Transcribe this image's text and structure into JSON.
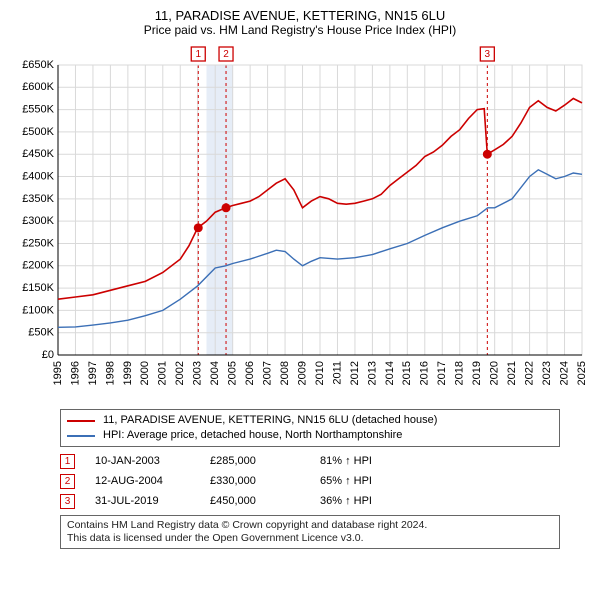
{
  "title": "11, PARADISE AVENUE, KETTERING, NN15 6LU",
  "subtitle": "Price paid vs. HM Land Registry's House Price Index (HPI)",
  "chart": {
    "type": "line",
    "x_years": [
      1995,
      1996,
      1997,
      1998,
      1999,
      2000,
      2001,
      2002,
      2003,
      2004,
      2005,
      2006,
      2007,
      2008,
      2009,
      2010,
      2011,
      2012,
      2013,
      2014,
      2015,
      2016,
      2017,
      2018,
      2019,
      2020,
      2021,
      2022,
      2023,
      2024,
      2025
    ],
    "ylim": [
      0,
      650000
    ],
    "ytick_step": 50000,
    "ytick_labels": [
      "£0",
      "£50K",
      "£100K",
      "£150K",
      "£200K",
      "£250K",
      "£300K",
      "£350K",
      "£400K",
      "£450K",
      "£500K",
      "£550K",
      "£600K",
      "£650K"
    ],
    "grid_color": "#d9d9d9",
    "background_color": "#ffffff",
    "axis_color": "#000000",
    "subject_color": "#cc0000",
    "hpi_color": "#3b6fb6",
    "marker_color": "#cc0000",
    "badge_border": "#cc0000",
    "highlight_band_fill": "#e6edf7",
    "highlight_band_years": [
      2003.5,
      2005.0
    ],
    "subject_series": [
      [
        1995.0,
        125000
      ],
      [
        1996.0,
        130000
      ],
      [
        1997.0,
        135000
      ],
      [
        1998.0,
        145000
      ],
      [
        1999.0,
        155000
      ],
      [
        2000.0,
        165000
      ],
      [
        2001.0,
        185000
      ],
      [
        2002.0,
        215000
      ],
      [
        2002.5,
        245000
      ],
      [
        2003.0,
        285000
      ],
      [
        2003.5,
        300000
      ],
      [
        2004.0,
        320000
      ],
      [
        2004.6,
        330000
      ],
      [
        2005.0,
        335000
      ],
      [
        2005.5,
        340000
      ],
      [
        2006.0,
        345000
      ],
      [
        2006.5,
        355000
      ],
      [
        2007.0,
        370000
      ],
      [
        2007.5,
        385000
      ],
      [
        2008.0,
        395000
      ],
      [
        2008.5,
        370000
      ],
      [
        2009.0,
        330000
      ],
      [
        2009.5,
        345000
      ],
      [
        2010.0,
        355000
      ],
      [
        2010.5,
        350000
      ],
      [
        2011.0,
        340000
      ],
      [
        2011.5,
        338000
      ],
      [
        2012.0,
        340000
      ],
      [
        2012.5,
        345000
      ],
      [
        2013.0,
        350000
      ],
      [
        2013.5,
        360000
      ],
      [
        2014.0,
        380000
      ],
      [
        2014.5,
        395000
      ],
      [
        2015.0,
        410000
      ],
      [
        2015.5,
        425000
      ],
      [
        2016.0,
        445000
      ],
      [
        2016.5,
        455000
      ],
      [
        2017.0,
        470000
      ],
      [
        2017.5,
        490000
      ],
      [
        2018.0,
        505000
      ],
      [
        2018.5,
        530000
      ],
      [
        2019.0,
        550000
      ],
      [
        2019.4,
        552000
      ],
      [
        2019.58,
        450000
      ],
      [
        2020.0,
        460000
      ],
      [
        2020.5,
        472000
      ],
      [
        2021.0,
        490000
      ],
      [
        2021.5,
        520000
      ],
      [
        2022.0,
        555000
      ],
      [
        2022.5,
        570000
      ],
      [
        2023.0,
        555000
      ],
      [
        2023.5,
        547000
      ],
      [
        2024.0,
        560000
      ],
      [
        2024.5,
        575000
      ],
      [
        2025.0,
        565000
      ]
    ],
    "hpi_series": [
      [
        1995.0,
        62000
      ],
      [
        1996.0,
        63000
      ],
      [
        1997.0,
        67000
      ],
      [
        1998.0,
        72000
      ],
      [
        1999.0,
        78000
      ],
      [
        2000.0,
        88000
      ],
      [
        2001.0,
        100000
      ],
      [
        2002.0,
        125000
      ],
      [
        2003.0,
        155000
      ],
      [
        2004.0,
        195000
      ],
      [
        2004.6,
        200000
      ],
      [
        2005.0,
        205000
      ],
      [
        2006.0,
        215000
      ],
      [
        2007.0,
        228000
      ],
      [
        2007.5,
        235000
      ],
      [
        2008.0,
        232000
      ],
      [
        2008.5,
        215000
      ],
      [
        2009.0,
        200000
      ],
      [
        2009.5,
        210000
      ],
      [
        2010.0,
        218000
      ],
      [
        2011.0,
        215000
      ],
      [
        2012.0,
        218000
      ],
      [
        2013.0,
        225000
      ],
      [
        2014.0,
        238000
      ],
      [
        2015.0,
        250000
      ],
      [
        2016.0,
        268000
      ],
      [
        2017.0,
        285000
      ],
      [
        2018.0,
        300000
      ],
      [
        2019.0,
        312000
      ],
      [
        2019.6,
        330000
      ],
      [
        2020.0,
        330000
      ],
      [
        2021.0,
        350000
      ],
      [
        2022.0,
        400000
      ],
      [
        2022.5,
        415000
      ],
      [
        2023.0,
        405000
      ],
      [
        2023.5,
        395000
      ],
      [
        2024.0,
        400000
      ],
      [
        2024.5,
        408000
      ],
      [
        2025.0,
        405000
      ]
    ],
    "event_markers": [
      {
        "x": 2003.03,
        "y": 285000,
        "badge": "1"
      },
      {
        "x": 2004.62,
        "y": 330000,
        "badge": "2"
      },
      {
        "x": 2019.58,
        "y": 450000,
        "badge": "3"
      }
    ],
    "badge_top_positions": [
      {
        "x": 2003.03,
        "badge": "1"
      },
      {
        "x": 2004.62,
        "badge": "2"
      },
      {
        "x": 2019.58,
        "badge": "3"
      }
    ]
  },
  "legend": {
    "items": [
      {
        "color": "#cc0000",
        "label": "11, PARADISE AVENUE, KETTERING, NN15 6LU (detached house)"
      },
      {
        "color": "#3b6fb6",
        "label": "HPI: Average price, detached house, North Northamptonshire"
      }
    ]
  },
  "events": [
    {
      "badge": "1",
      "date": "10-JAN-2003",
      "price": "£285,000",
      "delta": "81% ↑ HPI"
    },
    {
      "badge": "2",
      "date": "12-AUG-2004",
      "price": "£330,000",
      "delta": "65% ↑ HPI"
    },
    {
      "badge": "3",
      "date": "31-JUL-2019",
      "price": "£450,000",
      "delta": "36% ↑ HPI"
    }
  ],
  "footnote_line1": "Contains HM Land Registry data © Crown copyright and database right 2024.",
  "footnote_line2": "This data is licensed under the Open Government Licence v3.0."
}
